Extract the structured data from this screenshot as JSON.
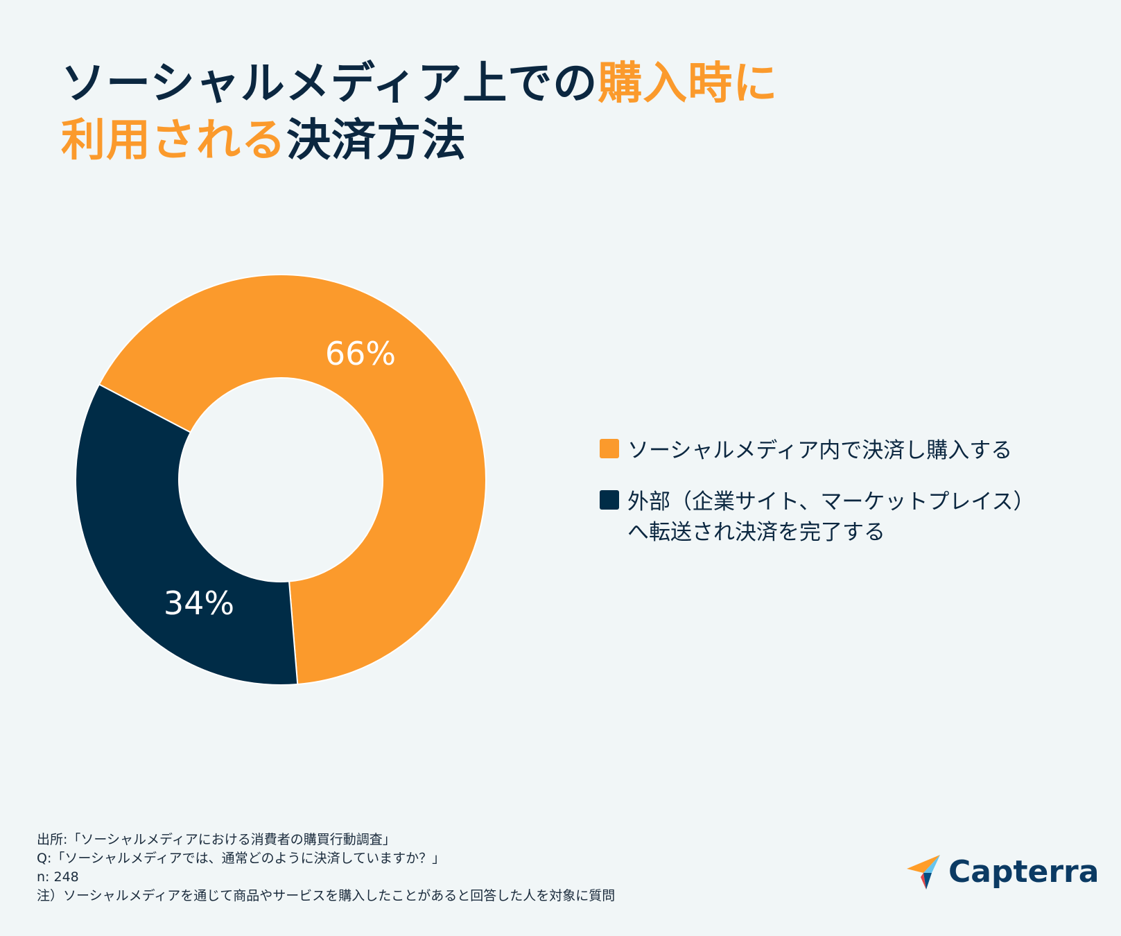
{
  "title": {
    "line1_dark": "ソーシャルメディア上での",
    "line1_accent": "購入時に",
    "line2_accent": "利用される",
    "line2_dark": "決済方法"
  },
  "chart_data": {
    "type": "pie",
    "variant": "donut",
    "title": "ソーシャルメディア上での購入時に利用される決済方法",
    "categories": [
      "ソーシャルメディア内で決済し購入する",
      "外部（企業サイト、マーケットプレイス）へ転送され決済を完了する"
    ],
    "values": [
      66,
      34
    ],
    "data_labels": [
      "66%",
      "34%"
    ],
    "colors": [
      "#fb9a2c",
      "#002c47"
    ],
    "legend_position": "right"
  },
  "legend": [
    {
      "label": "ソーシャルメディア内で決済し購入する",
      "color": "#fb9a2c"
    },
    {
      "label": "外部（企業サイト、マーケットプレイス）\nへ転送され決済を完了する",
      "color": "#002c47"
    }
  ],
  "footer": {
    "source": "出所:「ソーシャルメディアにおける消費者の購買行動調査」",
    "question": "Q:「ソーシャルメディアでは、通常どのように決済していますか？」",
    "n": "n: 248",
    "note": "注）ソーシャルメディアを通じて商品やサービスを購入したことがあると回答した人を対象に質問"
  },
  "logo": {
    "text": "Capterra"
  }
}
